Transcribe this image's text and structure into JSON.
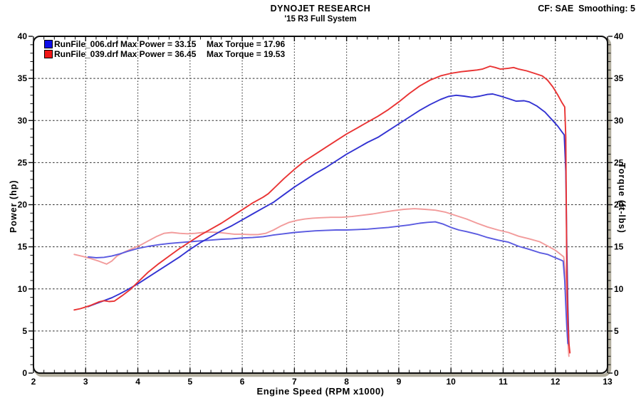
{
  "header": {
    "title": "DYNOJET RESEARCH",
    "subtitle": "'15 R3 Full System",
    "correction": "CF: SAE  Smoothing: 5"
  },
  "legend": {
    "rows": [
      {
        "color": "#0d0de8",
        "name": "RunFile_006.drf",
        "power": "Max Power = 33.15",
        "torque": "Max Torque = 17.96"
      },
      {
        "color": "#f01616",
        "name": "RunFile_039.drf",
        "power": "Max Power = 36.45",
        "torque": "Max Torque = 19.53"
      }
    ]
  },
  "chart_data": {
    "type": "line",
    "title": "DYNOJET RESEARCH",
    "subtitle": "'15 R3 Full System",
    "xlabel": "Engine Speed (RPM x1000)",
    "ylabel_left": "Power (hp)",
    "ylabel_right": "Torque (ft-lbs)",
    "xlim": [
      2,
      13
    ],
    "ylim": [
      0,
      40
    ],
    "x_major_ticks": [
      2,
      3,
      4,
      5,
      6,
      7,
      8,
      9,
      10,
      11,
      12,
      13
    ],
    "y_major_ticks": [
      0,
      5,
      10,
      15,
      20,
      25,
      30,
      35,
      40
    ],
    "x_minor_step": 0.2,
    "y_minor_step": 1,
    "grid": "dotted",
    "legend_position": "top-left",
    "colors": {
      "frame": "#0d0d0d",
      "shadow": "#b2ae9e",
      "grid": "#2e2e2e",
      "background": "#ffffff"
    },
    "series": [
      {
        "name": "RunFile_039 Torque",
        "unit": "ft-lbs",
        "max": 19.53,
        "color": "#f29b9b",
        "points": [
          [
            2.78,
            14.1
          ],
          [
            2.95,
            13.85
          ],
          [
            3.1,
            13.6
          ],
          [
            3.25,
            13.3
          ],
          [
            3.4,
            12.95
          ],
          [
            3.5,
            13.3
          ],
          [
            3.6,
            13.9
          ],
          [
            3.75,
            14.4
          ],
          [
            3.9,
            14.8
          ],
          [
            4.05,
            15.2
          ],
          [
            4.2,
            15.7
          ],
          [
            4.35,
            16.2
          ],
          [
            4.5,
            16.6
          ],
          [
            4.65,
            16.7
          ],
          [
            4.8,
            16.6
          ],
          [
            4.95,
            16.55
          ],
          [
            5.1,
            16.6
          ],
          [
            5.25,
            16.7
          ],
          [
            5.4,
            16.75
          ],
          [
            5.55,
            16.7
          ],
          [
            5.7,
            16.6
          ],
          [
            5.85,
            16.5
          ],
          [
            6.0,
            16.5
          ],
          [
            6.15,
            16.45
          ],
          [
            6.3,
            16.45
          ],
          [
            6.45,
            16.6
          ],
          [
            6.6,
            17.0
          ],
          [
            6.75,
            17.5
          ],
          [
            6.9,
            17.9
          ],
          [
            7.05,
            18.15
          ],
          [
            7.2,
            18.3
          ],
          [
            7.35,
            18.4
          ],
          [
            7.5,
            18.45
          ],
          [
            7.7,
            18.5
          ],
          [
            7.9,
            18.5
          ],
          [
            8.1,
            18.6
          ],
          [
            8.3,
            18.75
          ],
          [
            8.5,
            18.9
          ],
          [
            8.7,
            19.1
          ],
          [
            8.9,
            19.3
          ],
          [
            9.1,
            19.45
          ],
          [
            9.3,
            19.53
          ],
          [
            9.5,
            19.45
          ],
          [
            9.7,
            19.35
          ],
          [
            9.9,
            19.1
          ],
          [
            10.1,
            18.7
          ],
          [
            10.3,
            18.3
          ],
          [
            10.5,
            17.8
          ],
          [
            10.7,
            17.35
          ],
          [
            10.9,
            17.0
          ],
          [
            11.1,
            16.7
          ],
          [
            11.3,
            16.25
          ],
          [
            11.5,
            15.95
          ],
          [
            11.7,
            15.6
          ],
          [
            11.85,
            15.1
          ],
          [
            12.0,
            14.6
          ],
          [
            12.1,
            14.1
          ],
          [
            12.16,
            13.8
          ],
          [
            12.19,
            12.0
          ],
          [
            12.21,
            8.0
          ],
          [
            12.23,
            4.5
          ],
          [
            12.26,
            2.0
          ]
        ]
      },
      {
        "name": "RunFile_006 Torque",
        "unit": "ft-lbs",
        "max": 17.96,
        "color": "#5a5ae0",
        "points": [
          [
            3.05,
            13.8
          ],
          [
            3.2,
            13.7
          ],
          [
            3.35,
            13.75
          ],
          [
            3.5,
            13.9
          ],
          [
            3.65,
            14.15
          ],
          [
            3.8,
            14.45
          ],
          [
            4.0,
            14.8
          ],
          [
            4.2,
            15.05
          ],
          [
            4.4,
            15.25
          ],
          [
            4.6,
            15.4
          ],
          [
            4.8,
            15.5
          ],
          [
            5.0,
            15.6
          ],
          [
            5.2,
            15.7
          ],
          [
            5.4,
            15.8
          ],
          [
            5.6,
            15.9
          ],
          [
            5.8,
            15.95
          ],
          [
            6.0,
            16.05
          ],
          [
            6.2,
            16.1
          ],
          [
            6.4,
            16.2
          ],
          [
            6.6,
            16.4
          ],
          [
            6.8,
            16.55
          ],
          [
            7.0,
            16.7
          ],
          [
            7.2,
            16.8
          ],
          [
            7.4,
            16.9
          ],
          [
            7.6,
            16.95
          ],
          [
            7.8,
            17.0
          ],
          [
            8.0,
            17.0
          ],
          [
            8.2,
            17.05
          ],
          [
            8.4,
            17.1
          ],
          [
            8.6,
            17.2
          ],
          [
            8.8,
            17.3
          ],
          [
            9.0,
            17.45
          ],
          [
            9.2,
            17.6
          ],
          [
            9.4,
            17.8
          ],
          [
            9.55,
            17.9
          ],
          [
            9.7,
            17.96
          ],
          [
            9.85,
            17.7
          ],
          [
            10.0,
            17.3
          ],
          [
            10.15,
            17.0
          ],
          [
            10.3,
            16.8
          ],
          [
            10.5,
            16.5
          ],
          [
            10.7,
            16.1
          ],
          [
            10.9,
            15.8
          ],
          [
            11.1,
            15.55
          ],
          [
            11.3,
            15.05
          ],
          [
            11.5,
            14.7
          ],
          [
            11.7,
            14.3
          ],
          [
            11.85,
            14.1
          ],
          [
            12.0,
            13.7
          ],
          [
            12.1,
            13.45
          ],
          [
            12.15,
            13.3
          ],
          [
            12.18,
            11.0
          ],
          [
            12.2,
            8.0
          ],
          [
            12.22,
            5.5
          ],
          [
            12.24,
            3.5
          ]
        ]
      },
      {
        "name": "RunFile_006 Power",
        "unit": "hp",
        "max": 33.15,
        "color": "#3232d2",
        "points": [
          [
            3.05,
            7.9
          ],
          [
            3.2,
            8.25
          ],
          [
            3.35,
            8.6
          ],
          [
            3.5,
            8.95
          ],
          [
            3.65,
            9.4
          ],
          [
            3.8,
            9.9
          ],
          [
            4.0,
            10.6
          ],
          [
            4.2,
            11.4
          ],
          [
            4.4,
            12.2
          ],
          [
            4.6,
            13.0
          ],
          [
            4.8,
            13.8
          ],
          [
            5.0,
            14.7
          ],
          [
            5.2,
            15.5
          ],
          [
            5.4,
            16.2
          ],
          [
            5.6,
            16.9
          ],
          [
            5.8,
            17.5
          ],
          [
            6.0,
            18.2
          ],
          [
            6.2,
            18.9
          ],
          [
            6.4,
            19.6
          ],
          [
            6.6,
            20.3
          ],
          [
            6.8,
            21.2
          ],
          [
            7.0,
            22.1
          ],
          [
            7.2,
            22.9
          ],
          [
            7.4,
            23.7
          ],
          [
            7.6,
            24.4
          ],
          [
            7.8,
            25.2
          ],
          [
            8.0,
            26.0
          ],
          [
            8.2,
            26.7
          ],
          [
            8.4,
            27.4
          ],
          [
            8.6,
            28.0
          ],
          [
            8.8,
            28.8
          ],
          [
            9.0,
            29.6
          ],
          [
            9.2,
            30.4
          ],
          [
            9.4,
            31.2
          ],
          [
            9.6,
            31.9
          ],
          [
            9.8,
            32.5
          ],
          [
            9.95,
            32.85
          ],
          [
            10.1,
            33.0
          ],
          [
            10.25,
            32.9
          ],
          [
            10.4,
            32.75
          ],
          [
            10.55,
            32.9
          ],
          [
            10.7,
            33.1
          ],
          [
            10.8,
            33.15
          ],
          [
            10.95,
            32.9
          ],
          [
            11.1,
            32.6
          ],
          [
            11.25,
            32.3
          ],
          [
            11.4,
            32.35
          ],
          [
            11.5,
            32.2
          ],
          [
            11.65,
            31.7
          ],
          [
            11.8,
            31.0
          ],
          [
            11.95,
            30.0
          ],
          [
            12.05,
            29.3
          ],
          [
            12.12,
            28.7
          ],
          [
            12.17,
            28.3
          ],
          [
            12.2,
            24.0
          ],
          [
            12.22,
            15.0
          ],
          [
            12.24,
            8.0
          ],
          [
            12.26,
            3.3
          ]
        ]
      },
      {
        "name": "RunFile_039 Power",
        "unit": "hp",
        "max": 36.45,
        "color": "#e93333",
        "points": [
          [
            2.78,
            7.5
          ],
          [
            2.9,
            7.65
          ],
          [
            3.0,
            7.85
          ],
          [
            3.1,
            8.05
          ],
          [
            3.25,
            8.45
          ],
          [
            3.35,
            8.6
          ],
          [
            3.45,
            8.5
          ],
          [
            3.55,
            8.55
          ],
          [
            3.7,
            9.2
          ],
          [
            3.85,
            9.9
          ],
          [
            4.0,
            10.8
          ],
          [
            4.2,
            12.0
          ],
          [
            4.4,
            13.0
          ],
          [
            4.6,
            13.9
          ],
          [
            4.8,
            14.8
          ],
          [
            5.0,
            15.6
          ],
          [
            5.2,
            16.4
          ],
          [
            5.4,
            17.1
          ],
          [
            5.6,
            17.8
          ],
          [
            5.8,
            18.6
          ],
          [
            6.0,
            19.4
          ],
          [
            6.2,
            20.2
          ],
          [
            6.4,
            20.9
          ],
          [
            6.5,
            21.3
          ],
          [
            6.65,
            22.2
          ],
          [
            6.8,
            23.1
          ],
          [
            7.0,
            24.2
          ],
          [
            7.2,
            25.2
          ],
          [
            7.4,
            26.0
          ],
          [
            7.6,
            26.8
          ],
          [
            7.8,
            27.6
          ],
          [
            8.0,
            28.4
          ],
          [
            8.2,
            29.1
          ],
          [
            8.4,
            29.8
          ],
          [
            8.6,
            30.5
          ],
          [
            8.8,
            31.3
          ],
          [
            9.0,
            32.2
          ],
          [
            9.2,
            33.2
          ],
          [
            9.4,
            34.1
          ],
          [
            9.6,
            34.8
          ],
          [
            9.8,
            35.3
          ],
          [
            10.0,
            35.6
          ],
          [
            10.2,
            35.8
          ],
          [
            10.35,
            35.9
          ],
          [
            10.5,
            36.0
          ],
          [
            10.6,
            36.1
          ],
          [
            10.75,
            36.45
          ],
          [
            10.85,
            36.3
          ],
          [
            10.95,
            36.1
          ],
          [
            11.1,
            36.2
          ],
          [
            11.2,
            36.3
          ],
          [
            11.3,
            36.1
          ],
          [
            11.45,
            35.9
          ],
          [
            11.6,
            35.6
          ],
          [
            11.75,
            35.3
          ],
          [
            11.85,
            34.8
          ],
          [
            11.95,
            34.0
          ],
          [
            12.05,
            33.0
          ],
          [
            12.12,
            32.2
          ],
          [
            12.18,
            31.6
          ],
          [
            12.2,
            28.0
          ],
          [
            12.21,
            20.0
          ],
          [
            12.22,
            12.0
          ],
          [
            12.24,
            6.0
          ],
          [
            12.26,
            3.5
          ],
          [
            12.28,
            2.4
          ]
        ]
      }
    ]
  }
}
